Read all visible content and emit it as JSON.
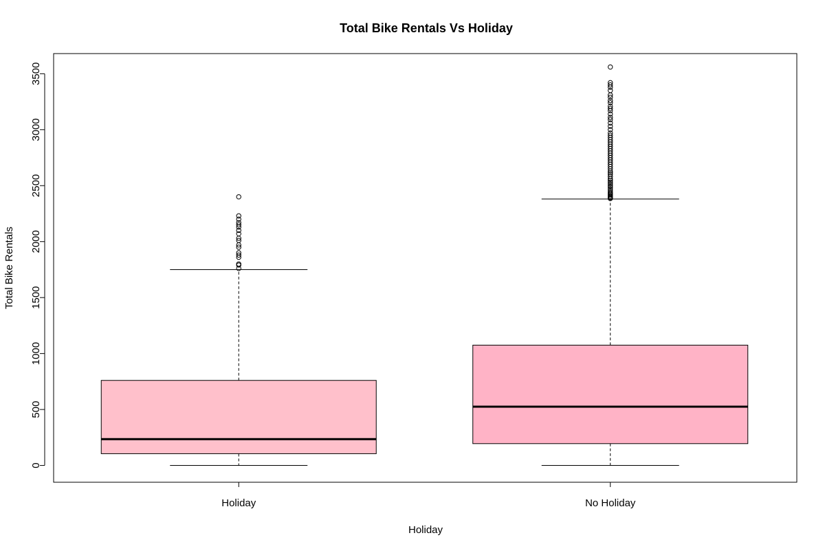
{
  "chart_data": {
    "type": "boxplot",
    "title": "Total Bike Rentals Vs Holiday",
    "xlabel": "Holiday",
    "ylabel": "Total Bike Rentals",
    "categories": [
      "Holiday",
      "No Holiday"
    ],
    "ylim": [
      -150,
      3680
    ],
    "yticks": [
      0,
      500,
      1000,
      1500,
      2000,
      2500,
      3000,
      3500
    ],
    "grid": false,
    "boxes": [
      {
        "category": "Holiday",
        "color": "#ffc0cb",
        "whisker_low": 0,
        "q1": 105,
        "median": 235,
        "q3": 760,
        "whisker_high": 1750,
        "outliers": [
          1760,
          1790,
          1800,
          1860,
          1880,
          1900,
          1950,
          1970,
          2010,
          2030,
          2070,
          2100,
          2130,
          2150,
          2170,
          2200,
          2230,
          2400
        ]
      },
      {
        "category": "No Holiday",
        "color": "#ffb3c6",
        "whisker_low": 0,
        "q1": 195,
        "median": 525,
        "q3": 1075,
        "whisker_high": 2380,
        "outliers": [
          2385,
          2392,
          2400,
          2410,
          2420,
          2430,
          2440,
          2455,
          2470,
          2485,
          2500,
          2515,
          2530,
          2545,
          2560,
          2580,
          2600,
          2615,
          2630,
          2650,
          2670,
          2690,
          2710,
          2730,
          2750,
          2770,
          2790,
          2810,
          2830,
          2850,
          2870,
          2890,
          2910,
          2930,
          2950,
          2970,
          3000,
          3030,
          3060,
          3090,
          3110,
          3140,
          3170,
          3190,
          3210,
          3240,
          3260,
          3290,
          3310,
          3350,
          3380,
          3400,
          3420,
          3560
        ]
      }
    ]
  }
}
